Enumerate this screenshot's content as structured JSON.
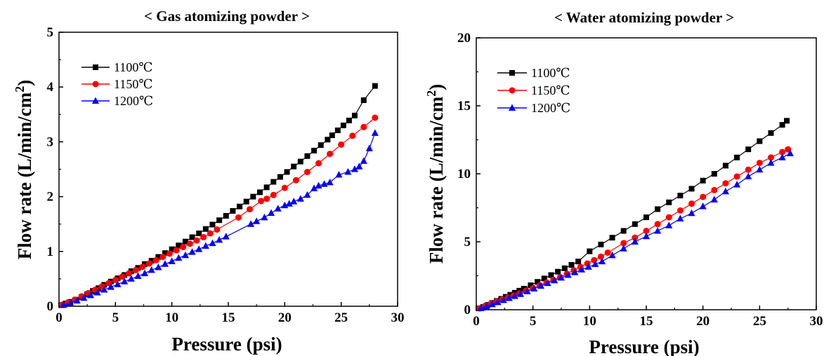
{
  "chart_data": [
    {
      "type": "line",
      "title": "< Gas atomizing powder >",
      "xlabel": "Pressure (psi)",
      "ylabel_main": "Flow rate (L/min/cm",
      "ylabel_sup": "2",
      "ylabel_tail": ")",
      "xlim": [
        0,
        30
      ],
      "ylim": [
        0,
        5
      ],
      "xticks": [
        "0",
        "5",
        "10",
        "15",
        "20",
        "25",
        "30"
      ],
      "yticks": [
        "0",
        "1",
        "2",
        "3",
        "4",
        "5"
      ],
      "legend_position": "top-left",
      "series": [
        {
          "name": "1100℃",
          "color": "#000000",
          "marker": "square",
          "x": [
            0.2,
            0.6,
            1.0,
            1.5,
            2.0,
            2.5,
            3.0,
            3.5,
            4.0,
            4.6,
            5.2,
            5.8,
            6.4,
            7.0,
            7.6,
            8.2,
            8.8,
            9.4,
            10.0,
            10.6,
            11.2,
            11.8,
            12.4,
            13.0,
            13.6,
            14.2,
            14.8,
            15.4,
            16.0,
            16.6,
            17.2,
            17.8,
            18.4,
            19.0,
            19.6,
            20.2,
            20.8,
            21.4,
            22.0,
            22.6,
            23.2,
            23.8,
            24.2,
            24.7,
            25.2,
            25.7,
            26.2,
            27.0,
            28.0
          ],
          "y": [
            0.02,
            0.05,
            0.08,
            0.12,
            0.17,
            0.22,
            0.28,
            0.33,
            0.39,
            0.45,
            0.51,
            0.57,
            0.64,
            0.7,
            0.77,
            0.83,
            0.9,
            0.97,
            1.04,
            1.11,
            1.18,
            1.26,
            1.33,
            1.41,
            1.49,
            1.57,
            1.65,
            1.74,
            1.82,
            1.91,
            2.0,
            2.08,
            2.17,
            2.27,
            2.36,
            2.45,
            2.55,
            2.64,
            2.74,
            2.84,
            2.94,
            3.04,
            3.12,
            3.21,
            3.3,
            3.39,
            3.48,
            3.76,
            4.02
          ]
        },
        {
          "name": "1150℃",
          "color": "#ff0000",
          "marker": "circle",
          "x": [
            0.3,
            0.8,
            1.4,
            2.0,
            2.6,
            3.2,
            3.8,
            4.4,
            5.0,
            5.6,
            6.2,
            6.8,
            7.4,
            8.0,
            8.6,
            9.2,
            9.8,
            10.4,
            11.0,
            11.6,
            12.2,
            12.8,
            13.4,
            14.0,
            15.9,
            16.9,
            17.9,
            18.4,
            19.0,
            20.0,
            21.0,
            22.0,
            23.0,
            24.0,
            25.0,
            26.0,
            27.0,
            28.0
          ],
          "y": [
            0.03,
            0.07,
            0.12,
            0.18,
            0.24,
            0.3,
            0.36,
            0.42,
            0.48,
            0.54,
            0.6,
            0.66,
            0.72,
            0.78,
            0.84,
            0.9,
            0.96,
            1.02,
            1.08,
            1.14,
            1.2,
            1.26,
            1.33,
            1.4,
            1.62,
            1.77,
            1.92,
            1.96,
            2.03,
            2.16,
            2.3,
            2.45,
            2.61,
            2.78,
            2.95,
            3.11,
            3.27,
            3.44
          ]
        },
        {
          "name": "1200℃",
          "color": "#0000ff",
          "marker": "triangle",
          "x": [
            0.4,
            1.0,
            1.6,
            2.2,
            2.8,
            3.4,
            4.0,
            4.6,
            5.2,
            5.8,
            6.4,
            7.0,
            7.6,
            8.2,
            8.8,
            9.4,
            10.0,
            10.6,
            11.2,
            11.8,
            12.4,
            13.0,
            13.6,
            14.2,
            14.8,
            17.0,
            17.5,
            18.2,
            18.8,
            19.4,
            20.0,
            20.4,
            20.8,
            21.4,
            22.0,
            22.6,
            23.0,
            23.5,
            24.0,
            24.8,
            25.6,
            26.2,
            26.6,
            27.0,
            27.5,
            28.0
          ],
          "y": [
            0.02,
            0.06,
            0.1,
            0.15,
            0.2,
            0.25,
            0.3,
            0.35,
            0.4,
            0.45,
            0.5,
            0.55,
            0.6,
            0.66,
            0.71,
            0.77,
            0.82,
            0.88,
            0.93,
            0.99,
            1.04,
            1.1,
            1.15,
            1.21,
            1.27,
            1.5,
            1.55,
            1.62,
            1.7,
            1.78,
            1.84,
            1.87,
            1.91,
            1.96,
            2.03,
            2.15,
            2.2,
            2.23,
            2.26,
            2.4,
            2.45,
            2.5,
            2.55,
            2.65,
            2.88,
            3.16
          ]
        }
      ]
    },
    {
      "type": "line",
      "title": "< Water atomizing powder >",
      "xlabel": "Pressure (psi)",
      "ylabel_main": "Flow rate (L/min/cm",
      "ylabel_sup": "2",
      "ylabel_tail": ")",
      "xlim": [
        0,
        30
      ],
      "ylim": [
        0,
        20
      ],
      "xticks": [
        "0",
        "5",
        "10",
        "15",
        "20",
        "25",
        "30"
      ],
      "yticks": [
        "0",
        "5",
        "10",
        "15",
        "20"
      ],
      "legend_position": "top-left",
      "series": [
        {
          "name": "1100℃",
          "color": "#000000",
          "marker": "square",
          "x": [
            0.2,
            0.6,
            1.0,
            1.4,
            1.8,
            2.2,
            2.6,
            3.0,
            3.4,
            3.8,
            4.2,
            4.8,
            5.4,
            6.0,
            6.6,
            7.2,
            7.8,
            8.4,
            9.0,
            10.0,
            11.0,
            12.0,
            13.0,
            14.0,
            15.0,
            16.0,
            17.0,
            18.0,
            19.0,
            20.0,
            21.0,
            22.0,
            23.0,
            24.0,
            25.0,
            26.0,
            27.0,
            27.4
          ],
          "y": [
            0.1,
            0.2,
            0.35,
            0.5,
            0.65,
            0.8,
            0.95,
            1.1,
            1.25,
            1.4,
            1.55,
            1.8,
            2.05,
            2.3,
            2.55,
            2.8,
            3.05,
            3.3,
            3.55,
            4.3,
            4.8,
            5.3,
            5.8,
            6.3,
            6.8,
            7.4,
            7.9,
            8.4,
            8.9,
            9.5,
            10.0,
            10.6,
            11.2,
            11.8,
            12.4,
            13.0,
            13.6,
            13.9
          ]
        },
        {
          "name": "1150℃",
          "color": "#ff0000",
          "marker": "circle",
          "x": [
            0.3,
            0.8,
            1.3,
            1.8,
            2.3,
            2.8,
            3.3,
            3.8,
            4.4,
            5.0,
            5.6,
            6.2,
            6.8,
            7.4,
            8.0,
            8.6,
            9.2,
            9.8,
            10.4,
            11.0,
            11.6,
            13.0,
            14.0,
            15.0,
            16.0,
            17.0,
            18.0,
            19.0,
            20.0,
            21.0,
            22.0,
            23.0,
            24.0,
            25.0,
            26.0,
            27.0,
            27.5
          ],
          "y": [
            0.1,
            0.3,
            0.45,
            0.6,
            0.75,
            0.9,
            1.05,
            1.2,
            1.4,
            1.6,
            1.8,
            2.0,
            2.2,
            2.4,
            2.65,
            2.9,
            3.15,
            3.4,
            3.65,
            3.9,
            4.2,
            4.9,
            5.3,
            5.8,
            6.3,
            6.8,
            7.3,
            7.8,
            8.3,
            8.8,
            9.3,
            9.8,
            10.3,
            10.8,
            11.2,
            11.6,
            11.8
          ]
        },
        {
          "name": "1200℃",
          "color": "#0000ff",
          "marker": "triangle",
          "x": [
            0.4,
            0.9,
            1.4,
            1.9,
            2.4,
            2.9,
            3.4,
            3.9,
            4.5,
            5.1,
            5.7,
            6.3,
            6.9,
            7.5,
            8.1,
            8.7,
            9.3,
            9.9,
            10.5,
            11.1,
            12.0,
            13.0,
            14.0,
            15.0,
            16.0,
            17.0,
            18.0,
            19.0,
            20.0,
            21.0,
            22.0,
            23.0,
            24.0,
            25.0,
            26.0,
            27.0,
            27.7
          ],
          "y": [
            0.1,
            0.25,
            0.4,
            0.55,
            0.7,
            0.85,
            1.0,
            1.15,
            1.35,
            1.55,
            1.75,
            1.95,
            2.15,
            2.35,
            2.55,
            2.75,
            2.95,
            3.15,
            3.35,
            3.55,
            4.0,
            4.5,
            5.0,
            5.4,
            5.8,
            6.2,
            6.7,
            7.1,
            7.6,
            8.1,
            8.7,
            9.2,
            9.8,
            10.3,
            10.8,
            11.2,
            11.5
          ]
        }
      ]
    }
  ]
}
